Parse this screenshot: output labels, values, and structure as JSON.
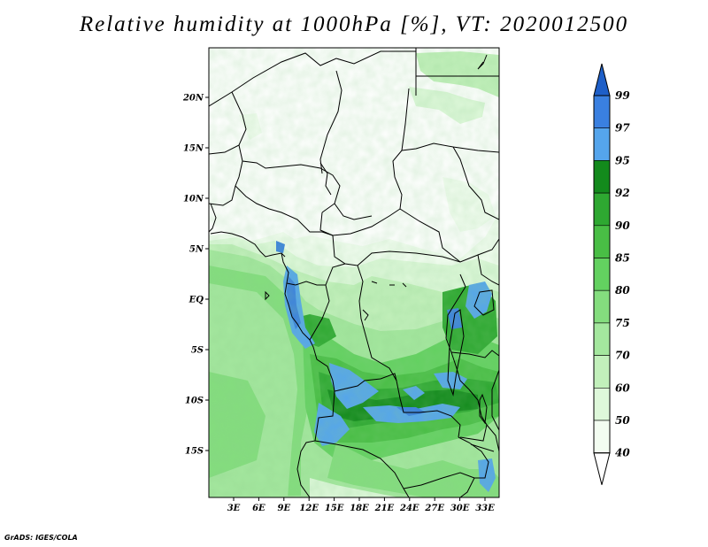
{
  "title": "Relative humidity at 1000hPa [%], VT: 2020012500",
  "credit": "GrADS: IGES/COLA",
  "map": {
    "region": "Central Africa",
    "variable": "Relative humidity",
    "level": "1000hPa",
    "units": "%",
    "valid_time": "2020012500",
    "lat_ticks": [
      "20N",
      "15N",
      "10N",
      "5N",
      "EQ",
      "5S",
      "10S",
      "15S"
    ],
    "lon_ticks": [
      "3E",
      "6E",
      "9E",
      "12E",
      "15E",
      "18E",
      "21E",
      "24E",
      "27E",
      "30E",
      "33E"
    ]
  },
  "colorbar": {
    "levels": [
      "99",
      "97",
      "95",
      "92",
      "90",
      "85",
      "80",
      "75",
      "70",
      "60",
      "50",
      "40"
    ],
    "colors": [
      "#1e5fc8",
      "#3a80e0",
      "#55a5ec",
      "#138a1c",
      "#2ea831",
      "#49be45",
      "#63d160",
      "#84dd7e",
      "#a4e79e",
      "#c2f0bb",
      "#def8da",
      "#f3fdf1",
      "#ffffff"
    ]
  }
}
